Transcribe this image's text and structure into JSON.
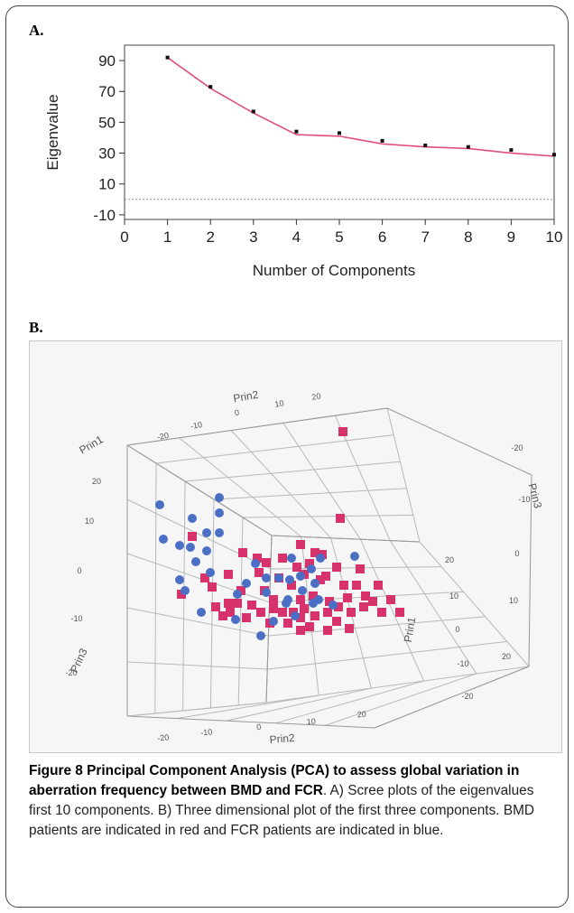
{
  "panel_a_label": "A.",
  "panel_b_label": "B.",
  "caption": {
    "title": "Figure 8 Principal Component Analysis (PCA) to assess global variation in aberration frequency between BMD and FCR",
    "body": ". A) Scree plots of the eigenvalues first 10 components. B) Three dimensional plot of the first three components. BMD patients are indicated in red and FCR patients are indicated in blue."
  },
  "colors": {
    "scree_line": "#e0507a",
    "bmd_red": "#d6336c",
    "fcr_blue": "#4a6fc4",
    "point": "#111111"
  },
  "chart_data": [
    {
      "type": "line",
      "xlabel": "Number of Components",
      "ylabel": "Eigenvalue",
      "xlim": [
        0,
        10
      ],
      "ylim": [
        -13,
        100
      ],
      "x_ticks": [
        "0",
        "1",
        "2",
        "3",
        "4",
        "5",
        "6",
        "7",
        "8",
        "9",
        "10"
      ],
      "y_ticks": [
        "-10",
        "10",
        "30",
        "50",
        "70",
        "90"
      ],
      "x": [
        1,
        2,
        3,
        4,
        5,
        6,
        7,
        8,
        9,
        10
      ],
      "series": [
        {
          "values": [
            92,
            73,
            57,
            44,
            43,
            38,
            35,
            34,
            32,
            29
          ]
        }
      ],
      "line_fit": [
        92,
        72,
        56,
        42,
        41,
        36,
        34,
        33,
        30,
        28
      ],
      "reference_line_y": 0
    },
    {
      "type": "scatter",
      "axis_labels": [
        "Prin1",
        "Prin2",
        "Prin3"
      ],
      "tick_labels": [
        "-20",
        "-10",
        "0",
        "10",
        "20"
      ],
      "groups": [
        {
          "shape": "square",
          "color": "red",
          "count": 64
        },
        {
          "shape": "circle",
          "color": "blue",
          "count": 38
        }
      ]
    }
  ]
}
